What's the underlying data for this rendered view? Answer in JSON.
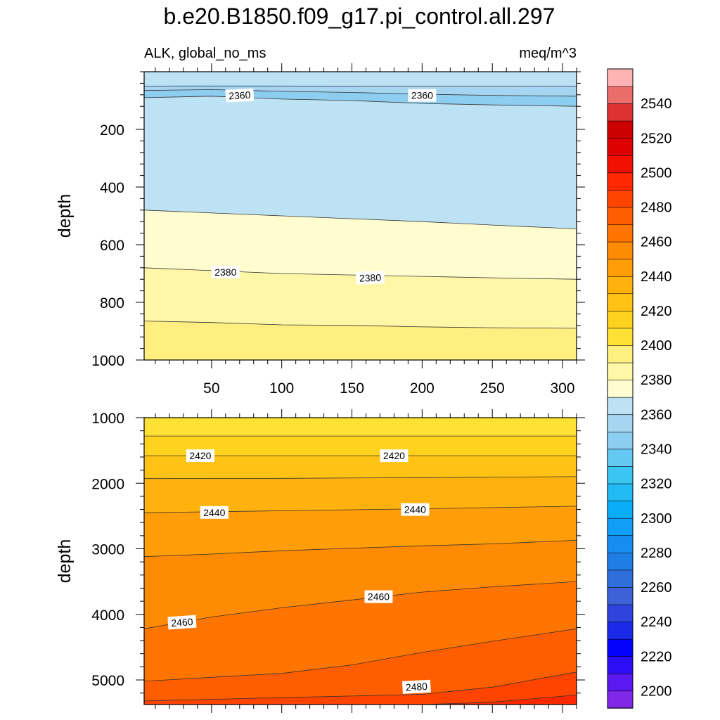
{
  "chart_data": {
    "type": "heatmap",
    "title": "b.e20.B1850.f09_g17.pi_control.all.297",
    "left_subtitle": "ALK, global_no_ms",
    "right_subtitle": "meq/m^3",
    "x_ticks": [
      "50",
      "100",
      "150",
      "200",
      "250",
      "300"
    ],
    "xlim": [
      2,
      310
    ],
    "colorbar": {
      "levels": [
        2200,
        2210,
        2220,
        2230,
        2240,
        2250,
        2260,
        2270,
        2280,
        2290,
        2300,
        2310,
        2320,
        2330,
        2340,
        2350,
        2360,
        2370,
        2380,
        2390,
        2400,
        2410,
        2420,
        2430,
        2440,
        2450,
        2460,
        2470,
        2480,
        2490,
        2500,
        2510,
        2520,
        2530,
        2540,
        2550
      ],
      "labels": [
        "2200",
        "2220",
        "2240",
        "2260",
        "2280",
        "2300",
        "2320",
        "2340",
        "2360",
        "2380",
        "2400",
        "2420",
        "2440",
        "2460",
        "2480",
        "2500",
        "2520",
        "2540"
      ],
      "colors": [
        "#8128e8",
        "#5b18f0",
        "#2d0ff5",
        "#0300fb",
        "#1a2ae8",
        "#2e44dd",
        "#3d62d8",
        "#2e6fdb",
        "#1e7ee6",
        "#168df0",
        "#109ef7",
        "#0aaef8",
        "#22baf4",
        "#3bc5f1",
        "#63c8f2",
        "#8ccdf0",
        "#a5d5f0",
        "#bce2f3",
        "#fffdd0",
        "#fff7a8",
        "#ffef80",
        "#ffe135",
        "#ffd21e",
        "#ffc215",
        "#ffb20d",
        "#ff9e08",
        "#ff8a04",
        "#ff7500",
        "#ff5e00",
        "#ff4400",
        "#ff2800",
        "#f21100",
        "#de0000",
        "#cc0000",
        "#dc3232",
        "#ec6c6c",
        "#ffb4b4"
      ]
    },
    "panels": [
      {
        "name": "upper",
        "ylabel": "depth",
        "y_ticks": [
          "200",
          "400",
          "600",
          "800",
          "1000"
        ],
        "ylim": [
          0,
          1000
        ],
        "y_reversed": true,
        "bands": [
          {
            "level_index": 17,
            "upper": [
              [
                2,
                0
              ],
              [
                310,
                0
              ]
            ],
            "lower": [
              [
                2,
                50
              ],
              [
                310,
                50
              ]
            ]
          },
          {
            "level_index": 16,
            "upper": [
              [
                2,
                50
              ],
              [
                50,
                45
              ],
              [
                100,
                48
              ],
              [
                150,
                50
              ],
              [
                200,
                52
              ],
              [
                250,
                52
              ],
              [
                310,
                50
              ]
            ],
            "lower": [
              [
                2,
                65
              ],
              [
                50,
                62
              ],
              [
                100,
                68
              ],
              [
                150,
                72
              ],
              [
                200,
                78
              ],
              [
                250,
                82
              ],
              [
                310,
                85
              ]
            ]
          },
          {
            "level_index": 15,
            "upper": [
              [
                2,
                65
              ],
              [
                50,
                62
              ],
              [
                100,
                68
              ],
              [
                150,
                72
              ],
              [
                200,
                78
              ],
              [
                250,
                82
              ],
              [
                310,
                85
              ]
            ],
            "lower": [
              [
                2,
                90
              ],
              [
                50,
                85
              ],
              [
                100,
                95
              ],
              [
                150,
                100
              ],
              [
                200,
                110
              ],
              [
                250,
                115
              ],
              [
                310,
                120
              ]
            ]
          },
          {
            "level_index": 17,
            "upper": [
              [
                2,
                90
              ],
              [
                50,
                85
              ],
              [
                100,
                95
              ],
              [
                150,
                100
              ],
              [
                200,
                110
              ],
              [
                250,
                115
              ],
              [
                310,
                120
              ]
            ],
            "lower": [
              [
                2,
                480
              ],
              [
                50,
                490
              ],
              [
                100,
                500
              ],
              [
                150,
                510
              ],
              [
                200,
                520
              ],
              [
                250,
                532
              ],
              [
                310,
                545
              ]
            ]
          },
          {
            "level_index": 18,
            "upper": [
              [
                2,
                480
              ],
              [
                50,
                490
              ],
              [
                100,
                500
              ],
              [
                150,
                510
              ],
              [
                200,
                520
              ],
              [
                250,
                532
              ],
              [
                310,
                545
              ]
            ],
            "lower": [
              [
                2,
                680
              ],
              [
                50,
                690
              ],
              [
                100,
                700
              ],
              [
                150,
                705
              ],
              [
                200,
                710
              ],
              [
                250,
                715
              ],
              [
                310,
                720
              ]
            ]
          },
          {
            "level_index": 19,
            "upper": [
              [
                2,
                680
              ],
              [
                50,
                690
              ],
              [
                100,
                700
              ],
              [
                150,
                705
              ],
              [
                200,
                710
              ],
              [
                250,
                715
              ],
              [
                310,
                720
              ]
            ],
            "lower": [
              [
                2,
                865
              ],
              [
                50,
                870
              ],
              [
                100,
                878
              ],
              [
                150,
                880
              ],
              [
                200,
                885
              ],
              [
                250,
                888
              ],
              [
                310,
                890
              ]
            ]
          },
          {
            "level_index": 20,
            "upper": [
              [
                2,
                865
              ],
              [
                50,
                870
              ],
              [
                100,
                878
              ],
              [
                150,
                880
              ],
              [
                200,
                885
              ],
              [
                250,
                888
              ],
              [
                310,
                890
              ]
            ],
            "lower": [
              [
                2,
                1000
              ],
              [
                310,
                1000
              ]
            ]
          }
        ],
        "contour_labels": [
          {
            "text": "2360",
            "x": 70,
            "y": 82,
            "angle": -3
          },
          {
            "text": "2360",
            "x": 200,
            "y": 82,
            "angle": 0
          },
          {
            "text": "2380",
            "x": 60,
            "y": 695,
            "angle": 0
          },
          {
            "text": "2380",
            "x": 163,
            "y": 715,
            "angle": -2
          }
        ]
      },
      {
        "name": "lower",
        "ylabel": "depth",
        "y_ticks": [
          "1000",
          "2000",
          "3000",
          "4000",
          "5000"
        ],
        "ylim": [
          1000,
          5375
        ],
        "y_reversed": true,
        "bands": [
          {
            "level_index": 21,
            "upper": [
              [
                2,
                1000
              ],
              [
                310,
                1000
              ]
            ],
            "lower": [
              [
                2,
                1280
              ],
              [
                310,
                1280
              ]
            ]
          },
          {
            "level_index": 22,
            "upper": [
              [
                2,
                1280
              ],
              [
                310,
                1280
              ]
            ],
            "lower": [
              [
                2,
                1580
              ],
              [
                310,
                1580
              ]
            ]
          },
          {
            "level_index": 23,
            "upper": [
              [
                2,
                1580
              ],
              [
                310,
                1580
              ]
            ],
            "lower": [
              [
                2,
                1930
              ],
              [
                100,
                1925
              ],
              [
                200,
                1915
              ],
              [
                310,
                1900
              ]
            ]
          },
          {
            "level_index": 24,
            "upper": [
              [
                2,
                1930
              ],
              [
                100,
                1925
              ],
              [
                200,
                1915
              ],
              [
                310,
                1900
              ]
            ],
            "lower": [
              [
                2,
                2450
              ],
              [
                100,
                2420
              ],
              [
                200,
                2390
              ],
              [
                310,
                2350
              ]
            ]
          },
          {
            "level_index": 25,
            "upper": [
              [
                2,
                2450
              ],
              [
                100,
                2420
              ],
              [
                200,
                2390
              ],
              [
                310,
                2350
              ]
            ],
            "lower": [
              [
                2,
                3120
              ],
              [
                50,
                3080
              ],
              [
                100,
                3030
              ],
              [
                150,
                2990
              ],
              [
                200,
                2955
              ],
              [
                250,
                2925
              ],
              [
                310,
                2870
              ]
            ]
          },
          {
            "level_index": 26,
            "upper": [
              [
                2,
                3120
              ],
              [
                50,
                3080
              ],
              [
                100,
                3030
              ],
              [
                150,
                2990
              ],
              [
                200,
                2955
              ],
              [
                250,
                2925
              ],
              [
                310,
                2870
              ]
            ],
            "lower": [
              [
                2,
                4220
              ],
              [
                50,
                4040
              ],
              [
                100,
                3900
              ],
              [
                150,
                3780
              ],
              [
                200,
                3660
              ],
              [
                250,
                3580
              ],
              [
                310,
                3500
              ]
            ]
          },
          {
            "level_index": 27,
            "upper": [
              [
                2,
                4220
              ],
              [
                50,
                4040
              ],
              [
                100,
                3900
              ],
              [
                150,
                3780
              ],
              [
                200,
                3660
              ],
              [
                250,
                3580
              ],
              [
                310,
                3500
              ]
            ],
            "lower": [
              [
                2,
                5020
              ],
              [
                50,
                4960
              ],
              [
                100,
                4900
              ],
              [
                150,
                4770
              ],
              [
                200,
                4580
              ],
              [
                250,
                4410
              ],
              [
                310,
                4220
              ]
            ]
          },
          {
            "level_index": 28,
            "upper": [
              [
                2,
                5020
              ],
              [
                50,
                4960
              ],
              [
                100,
                4900
              ],
              [
                150,
                4770
              ],
              [
                200,
                4580
              ],
              [
                250,
                4410
              ],
              [
                310,
                4220
              ]
            ],
            "lower": [
              [
                2,
                5320
              ],
              [
                100,
                5270
              ],
              [
                200,
                5220
              ],
              [
                250,
                5110
              ],
              [
                310,
                4880
              ]
            ]
          },
          {
            "level_index": 29,
            "upper": [
              [
                2,
                5320
              ],
              [
                100,
                5270
              ],
              [
                200,
                5220
              ],
              [
                250,
                5110
              ],
              [
                310,
                4880
              ]
            ],
            "lower": [
              [
                2,
                5375
              ],
              [
                200,
                5375
              ],
              [
                250,
                5340
              ],
              [
                310,
                5230
              ]
            ]
          },
          {
            "level_index": 30,
            "upper": [
              [
                2,
                5375
              ],
              [
                200,
                5375
              ],
              [
                250,
                5340
              ],
              [
                310,
                5230
              ]
            ],
            "lower": [
              [
                2,
                5375
              ],
              [
                310,
                5375
              ]
            ]
          }
        ],
        "contour_labels": [
          {
            "text": "2420",
            "x": 42,
            "y": 1580,
            "angle": 0
          },
          {
            "text": "2420",
            "x": 180,
            "y": 1580,
            "angle": 0
          },
          {
            "text": "2440",
            "x": 52,
            "y": 2445,
            "angle": 0
          },
          {
            "text": "2440",
            "x": 195,
            "y": 2400,
            "angle": 0
          },
          {
            "text": "2460",
            "x": 29,
            "y": 4120,
            "angle": -4
          },
          {
            "text": "2460",
            "x": 169,
            "y": 3730,
            "angle": 0
          },
          {
            "text": "2480",
            "x": 196,
            "y": 5105,
            "angle": -3
          }
        ]
      }
    ]
  }
}
